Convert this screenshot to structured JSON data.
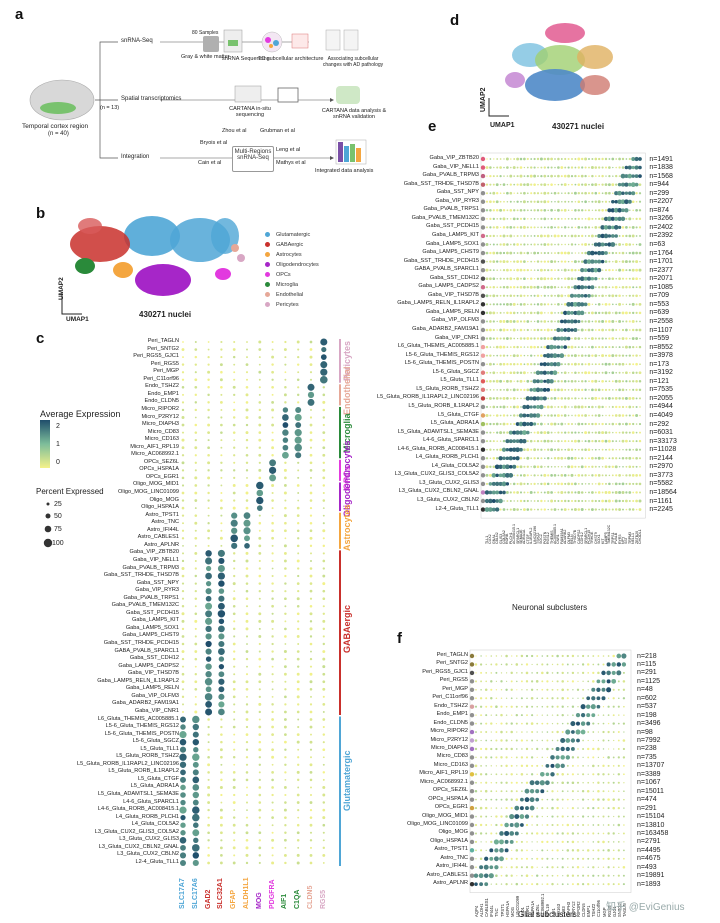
{
  "panel_a": {
    "letter": "a",
    "brain_label": "Temporal cortex region",
    "brain_n": "(n = 40)",
    "n13": "(n = 13)",
    "rows": [
      {
        "label": "snRNA-Seq",
        "sub1": "80 Samples",
        "step1": "Gray & white matter",
        "step2": "snRNA Sequencing",
        "step3": "TC subcellular architecture",
        "step4": "Associating subcellular changes with AD pathology"
      },
      {
        "label": "Spatial transcriptomics",
        "step1": "CARTANA in-situ sequencing",
        "step2": "CARTANA data analysis & snRNA validation"
      },
      {
        "label": "Integration",
        "step1": "Multi-Regions snRNA-Seq",
        "step2": "Integrated data analysis"
      }
    ],
    "integration_sources": [
      "Zhou et al",
      "Grubman et al",
      "Bryois et al",
      "Leng et al",
      "Cain et al",
      "Mathys et al"
    ]
  },
  "panel_b": {
    "letter": "b",
    "umap_x": "UMAP1",
    "umap_y": "UMAP2",
    "nuclei": "430271 nuclei",
    "legend": [
      {
        "label": "Glutamatergic",
        "color": "#4fa6d6"
      },
      {
        "label": "GABAergic",
        "color": "#c9302c"
      },
      {
        "label": "Astrocytes",
        "color": "#f4a640"
      },
      {
        "label": "Oligodendrocytes",
        "color": "#a626c8"
      },
      {
        "label": "OPCs",
        "color": "#e23adf"
      },
      {
        "label": "Microglia",
        "color": "#2a8a3a"
      },
      {
        "label": "Endothelial",
        "color": "#e6a898"
      },
      {
        "label": "Pericytes",
        "color": "#d8a7c4"
      }
    ]
  },
  "panel_c": {
    "letter": "c",
    "avg_expr_title": "Average Expression",
    "avg_ticks": [
      "2",
      "1",
      "0"
    ],
    "pct_title": "Percent Expressed",
    "pct_ticks": [
      "25",
      "50",
      "75",
      "100"
    ],
    "rows": [
      "Peri_TAGLN",
      "Peri_SNTG2",
      "Peri_RGS5_GJC1",
      "Peri_RGS5",
      "Peri_MGP",
      "Peri_C11orf96",
      "Endo_TSHZ2",
      "Endo_EMP1",
      "Endo_CLDN5",
      "Micro_RIPOR2",
      "Micro_P2RY12",
      "Micro_DIAPH3",
      "Micro_CD83",
      "Micro_CD163",
      "Micro_AIF1_RPL19",
      "Micro_AC068992.1",
      "OPCs_SEZ6L",
      "OPCs_HSPA1A",
      "OPCs_EGR1",
      "Oligo_MOG_MID1",
      "Oligo_MOG_LINC01099",
      "Oligo_MOG",
      "Oligo_HSPA1A",
      "Astro_TPST1",
      "Astro_TNC",
      "Astro_IFI44L",
      "Astro_CABLES1",
      "Astro_APLNR",
      "Gaba_VIP_ZBTB20",
      "Gaba_VIP_NELL1",
      "Gaba_PVALB_TRPM3",
      "Gaba_SST_TRHDE_THSD7B",
      "Gaba_SST_NPY",
      "Gaba_VIP_RYR3",
      "Gaba_PVALB_TRPS1",
      "Gaba_PVALB_TMEM132C",
      "Gaba_SST_PCDH15",
      "Gaba_LAMP5_KIT",
      "Gaba_LAMP5_SOX1",
      "Gaba_LAMP5_CHST9",
      "Gaba_SST_TRHDE_PCDH15",
      "GABA_PVALB_SPARCL1",
      "Gaba_SST_CDH12",
      "Gaba_LAMP5_CADPS2",
      "Gaba_VIP_THSD7B",
      "Gaba_LAMP5_RELN_IL1RAPL2",
      "Gaba_LAMP5_RELN",
      "Gaba_VIP_OLFM3",
      "Gaba_ADARB2_FAM19A1",
      "Gaba_VIP_CNR1",
      "L6_Gluta_THEMIS_AC005885.1",
      "L5-6_Gluta_THEMIS_RGS12",
      "L5-6_Gluta_THEMIS_POSTN",
      "L5-6_Gluta_SGCZ",
      "L5_Gluta_TLL1",
      "L5_Gluta_RORB_TSHZ2",
      "L5_Gluta_RORB_IL1RAPL2_LINC02196",
      "L5_Gluta_RORB_IL1RAPL2",
      "L5_Gluta_CTGF",
      "L5_Gluta_ADRA1A",
      "L5_Gluta_ADAMTSL1_SEMA3E",
      "L4-6_Gluta_SPARCL1",
      "L4-6_Gluta_RORB_AC008415.1",
      "L4_Gluta_RORB_PLCH1",
      "L4_Gluta_COL5A2",
      "L3_Gluta_CUX2_GLIS3_COL5A2",
      "L3_Gluta_CUX2_GLIS3",
      "L3_Gluta_CUX2_CBLN2_GNAL",
      "L3_Gluta_CUX2_CBLN2",
      "L2-4_Gluta_TLL1"
    ],
    "cols": [
      {
        "label": "SLC17A7",
        "color": "#4fa6d6"
      },
      {
        "label": "SLC17A6",
        "color": "#4fa6d6"
      },
      {
        "label": "GAD2",
        "color": "#c9302c"
      },
      {
        "label": "SLC32A1",
        "color": "#c9302c"
      },
      {
        "label": "GFAP",
        "color": "#f4a640"
      },
      {
        "label": "ALDH1L1",
        "color": "#f4a640"
      },
      {
        "label": "MOG",
        "color": "#a626c8"
      },
      {
        "label": "PDGFRA",
        "color": "#e23adf"
      },
      {
        "label": "AIF1",
        "color": "#2a8a3a"
      },
      {
        "label": "C1QA",
        "color": "#2a8a3a"
      },
      {
        "label": "CLDN5",
        "color": "#e6a898"
      },
      {
        "label": "RGS5",
        "color": "#d8a7c4"
      }
    ],
    "groups": [
      {
        "label": "Pericytes",
        "color": "#d8a7c4"
      },
      {
        "label": "Endothelial",
        "color": "#e6a898"
      },
      {
        "label": "Microglia",
        "color": "#2a8a3a"
      },
      {
        "label": "OPCs",
        "color": "#e23adf"
      },
      {
        "label": "Oligodendrocytes",
        "color": "#a626c8"
      },
      {
        "label": "Astrocytes",
        "color": "#f4a640"
      },
      {
        "label": "GABAergic",
        "color": "#c9302c"
      },
      {
        "label": "Glutamatergic",
        "color": "#4fa6d6"
      }
    ]
  },
  "panel_d": {
    "letter": "d",
    "umap_x": "UMAP1",
    "umap_y": "UMAP2",
    "nuclei": "430271 nuclei"
  },
  "panel_e": {
    "letter": "e",
    "xlabel": "Neuronal subclusters",
    "rows": [
      {
        "label": "Gaba_VIP_ZBTB20",
        "n": "n=1491",
        "color": "#e05a7a"
      },
      {
        "label": "Gaba_VIP_NELL1",
        "n": "n=1838",
        "color": "#e05a7a"
      },
      {
        "label": "Gaba_PVALB_TRPM3",
        "n": "n=1568",
        "color": "#c06080"
      },
      {
        "label": "Gaba_SST_TRHDE_THSD7B",
        "n": "n=944",
        "color": "#c0606a"
      },
      {
        "label": "Gaba_SST_NPY",
        "n": "n=299",
        "color": "#909090"
      },
      {
        "label": "Gaba_VIP_RYR3",
        "n": "n=2207",
        "color": "#909090"
      },
      {
        "label": "Gaba_PVALB_TRPS1",
        "n": "n=874",
        "color": "#909090"
      },
      {
        "label": "Gaba_PVALB_TMEM132C",
        "n": "n=3266",
        "color": "#909090"
      },
      {
        "label": "Gaba_SST_PCDH15",
        "n": "n=2402",
        "color": "#909090"
      },
      {
        "label": "Gaba_LAMP5_KIT",
        "n": "n=2392",
        "color": "#d06a8a"
      },
      {
        "label": "Gaba_LAMP5_SOX1",
        "n": "n=63",
        "color": "#909090"
      },
      {
        "label": "Gaba_LAMP5_CHST9",
        "n": "n=1764",
        "color": "#909090"
      },
      {
        "label": "Gaba_SST_TRHDE_PCDH15",
        "n": "n=1701",
        "color": "#505050"
      },
      {
        "label": "GABA_PVALB_SPARCL1",
        "n": "n=2377",
        "color": "#909090"
      },
      {
        "label": "Gaba_SST_CDH12",
        "n": "n=2071",
        "color": "#505050"
      },
      {
        "label": "Gaba_LAMP5_CADPS2",
        "n": "n=1085",
        "color": "#d06a8a"
      },
      {
        "label": "Gaba_VIP_THSD7B",
        "n": "n=709",
        "color": "#505050"
      },
      {
        "label": "Gaba_LAMP5_RELN_IL1RAPL2",
        "n": "n=553",
        "color": "#303030"
      },
      {
        "label": "Gaba_LAMP5_RELN",
        "n": "n=639",
        "color": "#303030"
      },
      {
        "label": "Gaba_VIP_OLFM3",
        "n": "n=2558",
        "color": "#909090"
      },
      {
        "label": "Gaba_ADARB2_FAM19A1",
        "n": "n=1107",
        "color": "#909090"
      },
      {
        "label": "Gaba_VIP_CNR1",
        "n": "n=559",
        "color": "#909090"
      },
      {
        "label": "L6_Gluta_THEMIS_AC005885.1",
        "n": "n=8552",
        "color": "#f0a0a0"
      },
      {
        "label": "L5-6_Gluta_THEMIS_RGS12",
        "n": "n=3978",
        "color": "#f0a0a0"
      },
      {
        "label": "L5-6_Gluta_THEMIS_POSTN",
        "n": "n=173",
        "color": "#909090"
      },
      {
        "label": "L5-6_Gluta_SGCZ",
        "n": "n=3192",
        "color": "#e07a7a"
      },
      {
        "label": "L5_Gluta_TLL1",
        "n": "n=121",
        "color": "#e05a5a"
      },
      {
        "label": "L5_Gluta_RORB_TSHZ2",
        "n": "n=7535",
        "color": "#e07a7a"
      },
      {
        "label": "L5_Gluta_RORB_IL1RAPL2_LINC02196",
        "n": "n=2055",
        "color": "#c04040"
      },
      {
        "label": "L5_Gluta_RORB_IL1RAPL2",
        "n": "n=4944",
        "color": "#909090"
      },
      {
        "label": "L5_Gluta_CTGF",
        "n": "n=4049",
        "color": "#e0a060"
      },
      {
        "label": "L5_Gluta_ADRA1A",
        "n": "n=292",
        "color": "#a0c060"
      },
      {
        "label": "L5_Gluta_ADAMTSL1_SEMA3E",
        "n": "n=6031",
        "color": "#909090"
      },
      {
        "label": "L4-6_Gluta_SPARCL1",
        "n": "n=33173",
        "color": "#909090"
      },
      {
        "label": "L4-6_Gluta_RORB_AC008415.1",
        "n": "n=11028",
        "color": "#303030"
      },
      {
        "label": "L4_Gluta_RORB_PLCH1",
        "n": "n=2144",
        "color": "#909090"
      },
      {
        "label": "L4_Gluta_COL5A2",
        "n": "n=2970",
        "color": "#909090"
      },
      {
        "label": "L3_Gluta_CUX2_GLIS3_COL5A2",
        "n": "n=3773",
        "color": "#909090"
      },
      {
        "label": "L3_Gluta_CUX2_GLIS3",
        "n": "n=5582",
        "color": "#909090"
      },
      {
        "label": "L3_Gluta_CUX2_CBLN2_GNAL",
        "n": "n=18564",
        "color": "#c080c0"
      },
      {
        "label": "L3_Gluta_CUX2_CBLN2",
        "n": "n=1161",
        "color": "#909090"
      },
      {
        "label": "L2-4_Gluta_TLL1",
        "n": "n=2245",
        "color": "#303030"
      }
    ],
    "cols": [
      "TLL1",
      "CUX2",
      "GNAL",
      "CBLN2",
      "GLIS3",
      "COL5A2",
      "RORB",
      "PLCH1",
      "AC008415.1",
      "SPARCL1",
      "SEMA3E",
      "ADRA1A",
      "CTGF",
      "IL1RAPL2",
      "LINC02196",
      "TSHZ2",
      "SGCZ",
      "POSTN",
      "RGS12",
      "THEMIS",
      "AC005885.1",
      "CNR1",
      "FAM19A1",
      "ADARB2",
      "OLFM3",
      "RELN",
      "THSD7B",
      "CADPS2",
      "CDH12",
      "SPARCL1",
      "PCDH15",
      "TRHDE",
      "CHST9",
      "SOX1",
      "KIT",
      "LAMP5",
      "TMEM132C",
      "TRPS1",
      "PVALB",
      "RYR3",
      "NPY",
      "SST",
      "TRPM3",
      "NELL1",
      "ZBTB20",
      "CHODL1"
    ]
  },
  "panel_f": {
    "letter": "f",
    "xlabel": "Glial subclusters",
    "rows": [
      {
        "label": "Peri_TAGLN",
        "n": "n=218",
        "color": "#8a7a3a"
      },
      {
        "label": "Peri_SNTG2",
        "n": "n=115",
        "color": "#8a7a3a"
      },
      {
        "label": "Peri_RGS5_GJC1",
        "n": "n=291",
        "color": "#505050"
      },
      {
        "label": "Peri_RGS5",
        "n": "n=1125",
        "color": "#909090"
      },
      {
        "label": "Peri_MGP",
        "n": "n=48",
        "color": "#909090"
      },
      {
        "label": "Peri_C11orf96",
        "n": "n=602",
        "color": "#909090"
      },
      {
        "label": "Endo_TSHZ2",
        "n": "n=537",
        "color": "#d8a0a0"
      },
      {
        "label": "Endo_EMP1",
        "n": "n=198",
        "color": "#909090"
      },
      {
        "label": "Endo_CLDN5",
        "n": "n=3496",
        "color": "#909090"
      },
      {
        "label": "Micro_RIPOR2",
        "n": "n=98",
        "color": "#a070c0"
      },
      {
        "label": "Micro_P2RY12",
        "n": "n=7992",
        "color": "#c0a0d0"
      },
      {
        "label": "Micro_DIAPH3",
        "n": "n=238",
        "color": "#a070c0"
      },
      {
        "label": "Micro_CD83",
        "n": "n=735",
        "color": "#909090"
      },
      {
        "label": "Micro_CD163",
        "n": "n=13707",
        "color": "#909090"
      },
      {
        "label": "Micro_AIF1_RPL19",
        "n": "n=3389",
        "color": "#e0c040"
      },
      {
        "label": "Micro_AC068992.1",
        "n": "n=1067",
        "color": "#909090"
      },
      {
        "label": "OPCs_SEZ6L",
        "n": "n=15011",
        "color": "#909090"
      },
      {
        "label": "OPCs_HSPA1A",
        "n": "n=474",
        "color": "#909090"
      },
      {
        "label": "OPCs_EGR1",
        "n": "n=291",
        "color": "#d0a040"
      },
      {
        "label": "Oligo_MOG_MID1",
        "n": "n=15104",
        "color": "#909090"
      },
      {
        "label": "Oligo_MOG_LINC01099",
        "n": "n=13810",
        "color": "#909090"
      },
      {
        "label": "Oligo_MOG",
        "n": "n=163458",
        "color": "#909090"
      },
      {
        "label": "Oligo_HSPA1A",
        "n": "n=2791",
        "color": "#909090"
      },
      {
        "label": "Astro_TPST1",
        "n": "n=4495",
        "color": "#60b0a0"
      },
      {
        "label": "Astro_TNC",
        "n": "n=4675",
        "color": "#909090"
      },
      {
        "label": "Astro_IFI44L",
        "n": "n=493",
        "color": "#909090"
      },
      {
        "label": "Astro_CABLES1",
        "n": "n=19891",
        "color": "#909090"
      },
      {
        "label": "Astro_APLNR",
        "n": "n=1893",
        "color": "#303030"
      }
    ],
    "cols": [
      "AQP4",
      "ALDH1",
      "CABLES1",
      "IFI44L",
      "TNC",
      "TPST1",
      "HSPA1A",
      "MOG",
      "LINC01099",
      "MID1",
      "EGR1",
      "HSPA1A",
      "SEZ6L",
      "AC068992.1",
      "RPL19",
      "AIF1",
      "CD163",
      "CD83",
      "DIAPH3",
      "P2RY12",
      "RIPOR2",
      "CLDN5",
      "EMP1",
      "TSHZ2",
      "C11orf96",
      "MGP",
      "RGS5",
      "GJC1",
      "SNTG2",
      "TAGLN"
    ]
  },
  "watermark": "知乎 @EviGenius",
  "colors": {
    "dot_low": "#f4f28a",
    "dot_mid": "#7dbd9a",
    "dot_high": "#1f4d6b"
  }
}
